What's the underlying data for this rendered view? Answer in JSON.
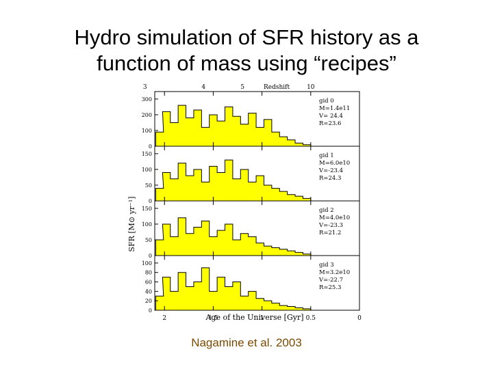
{
  "slide": {
    "title_line1": "Hydro simulation of SFR history as a",
    "title_line2": "function of mass using “recipes”",
    "citation": "Nagamine et al. 2003"
  },
  "colors": {
    "fill": "#ffff00",
    "line": "#000000",
    "citation": "#7a4a00"
  },
  "chart_data": {
    "type": "area",
    "top_axis": {
      "label": "Redshift",
      "ticks": [
        "3",
        "4",
        "5",
        "10"
      ],
      "tick_ages": [
        2.2,
        1.6,
        1.2,
        0.5
      ]
    },
    "xlabel": "Age of the Universe [Gyr]",
    "ylabel": "SFR [M⊙ yr⁻¹]",
    "xticks": [
      "2",
      "1.5",
      "1",
      "0.5",
      "0"
    ],
    "xtick_values": [
      2,
      1.5,
      1,
      0.5,
      0
    ],
    "xlim": [
      2.1,
      0
    ],
    "panels": [
      {
        "labels": [
          "gid 0",
          "M=1.4e11",
          "V= 24.4",
          "R=23.6"
        ],
        "yticks": [
          "0",
          "100",
          "200",
          "300"
        ],
        "ytick_values": [
          0,
          100,
          200,
          300
        ],
        "ylim": [
          0,
          330
        ],
        "x": [
          2.05,
          1.98,
          1.9,
          1.82,
          1.74,
          1.66,
          1.58,
          1.5,
          1.42,
          1.34,
          1.26,
          1.18,
          1.1,
          1.02,
          0.94,
          0.86,
          0.78,
          0.7,
          0.62,
          0.54
        ],
        "values": [
          90,
          220,
          150,
          260,
          180,
          230,
          120,
          200,
          160,
          250,
          190,
          140,
          210,
          120,
          170,
          90,
          60,
          40,
          20,
          10
        ]
      },
      {
        "labels": [
          "gid 1",
          "M=6.0e10",
          "V=-23.4",
          "R=24.3"
        ],
        "yticks": [
          "0",
          "50",
          "100",
          "150"
        ],
        "ytick_values": [
          0,
          50,
          100,
          150
        ],
        "ylim": [
          0,
          165
        ],
        "x": [
          2.05,
          1.98,
          1.9,
          1.82,
          1.74,
          1.66,
          1.58,
          1.5,
          1.42,
          1.34,
          1.26,
          1.18,
          1.1,
          1.02,
          0.94,
          0.86,
          0.78,
          0.7,
          0.62,
          0.54
        ],
        "values": [
          40,
          90,
          70,
          120,
          80,
          100,
          60,
          110,
          90,
          130,
          70,
          100,
          60,
          80,
          50,
          40,
          30,
          20,
          15,
          8
        ]
      },
      {
        "labels": [
          "gid 2",
          "M=4.0e10",
          "V=-23.3",
          "R=21.2"
        ],
        "yticks": [
          "0",
          "50",
          "100",
          "150"
        ],
        "ytick_values": [
          0,
          50,
          100,
          150
        ],
        "ylim": [
          0,
          165
        ],
        "x": [
          2.05,
          1.98,
          1.9,
          1.82,
          1.74,
          1.66,
          1.58,
          1.5,
          1.42,
          1.34,
          1.26,
          1.18,
          1.1,
          1.02,
          0.94,
          0.86,
          0.78,
          0.7,
          0.62,
          0.54
        ],
        "values": [
          50,
          100,
          60,
          120,
          70,
          90,
          110,
          60,
          80,
          100,
          50,
          70,
          60,
          40,
          30,
          25,
          20,
          15,
          10,
          5
        ]
      },
      {
        "labels": [
          "gid 3",
          "M=3.2e10",
          "V=-22.7",
          "R=25.3"
        ],
        "yticks": [
          "0",
          "20",
          "40",
          "60",
          "80",
          "100"
        ],
        "ytick_values": [
          0,
          20,
          40,
          60,
          80,
          100
        ],
        "ylim": [
          0,
          110
        ],
        "x": [
          2.05,
          1.98,
          1.9,
          1.82,
          1.74,
          1.66,
          1.58,
          1.5,
          1.42,
          1.34,
          1.26,
          1.18,
          1.1,
          1.02,
          0.94,
          0.86,
          0.78,
          0.7,
          0.62,
          0.54
        ],
        "values": [
          30,
          70,
          40,
          80,
          50,
          60,
          90,
          40,
          70,
          50,
          60,
          30,
          40,
          25,
          20,
          15,
          10,
          8,
          5,
          3
        ]
      }
    ]
  }
}
